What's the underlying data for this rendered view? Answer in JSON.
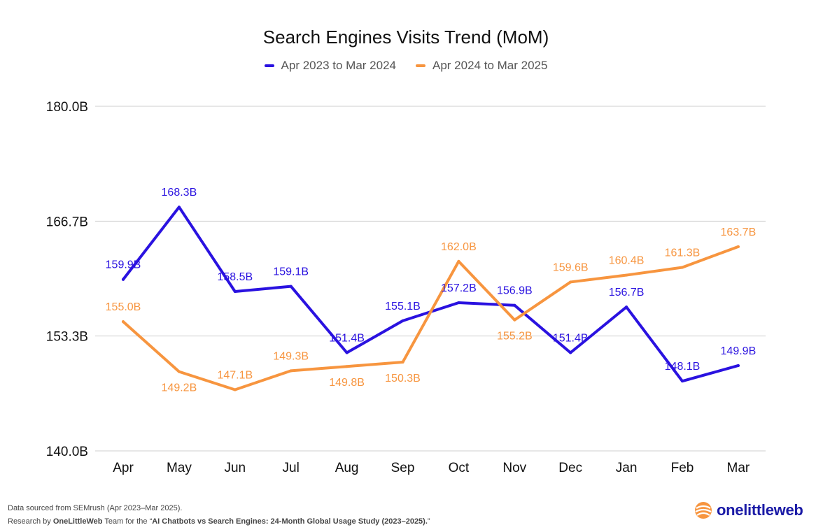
{
  "chart_data": {
    "type": "line",
    "title": "Search Engines Visits Trend (MoM)",
    "categories": [
      "Apr",
      "May",
      "Jun",
      "Jul",
      "Aug",
      "Sep",
      "Oct",
      "Nov",
      "Dec",
      "Jan",
      "Feb",
      "Mar"
    ],
    "y_ticks": [
      "180.0B",
      "166.7B",
      "153.3B",
      "140.0B"
    ],
    "ylim": [
      140.0,
      180.0
    ],
    "grid": true,
    "legend": "top-center",
    "series": [
      {
        "name": "Apr 2023 to Mar 2024",
        "color": "#2a12e0",
        "values": [
          159.9,
          168.3,
          158.5,
          159.1,
          151.4,
          155.1,
          157.2,
          156.9,
          151.4,
          156.7,
          148.1,
          149.9
        ],
        "labels": [
          "159.9B",
          "168.3B",
          "158.5B",
          "159.1B",
          "151.4B",
          "155.1B",
          "157.2B",
          "156.9B",
          "151.4B",
          "156.7B",
          "148.1B",
          "149.9B"
        ]
      },
      {
        "name": "Apr 2024 to Mar 2025",
        "color": "#f7953f",
        "values": [
          155.0,
          149.2,
          147.1,
          149.3,
          149.8,
          150.3,
          162.0,
          155.2,
          159.6,
          160.4,
          161.3,
          163.7
        ],
        "labels": [
          "155.0B",
          "149.2B",
          "147.1B",
          "149.3B",
          "149.8B",
          "150.3B",
          "162.0B",
          "155.2B",
          "159.6B",
          "160.4B",
          "161.3B",
          "163.7B"
        ]
      }
    ]
  },
  "footer": {
    "line1": "Data sourced from SEMrush (Apr 2023–Mar 2025).",
    "line2_prefix": "Research by ",
    "line2_brand": "OneLittleWeb",
    "line2_middle": " Team for the “",
    "line2_study": "AI Chatbots vs Search Engines: 24-Month Global Usage Study (2023–2025).",
    "line2_suffix": "”"
  },
  "logo": {
    "text": "onelittleweb",
    "icon": "onelittleweb-logo-icon",
    "color": "#1a1aa6",
    "accent": "#f7953f"
  }
}
